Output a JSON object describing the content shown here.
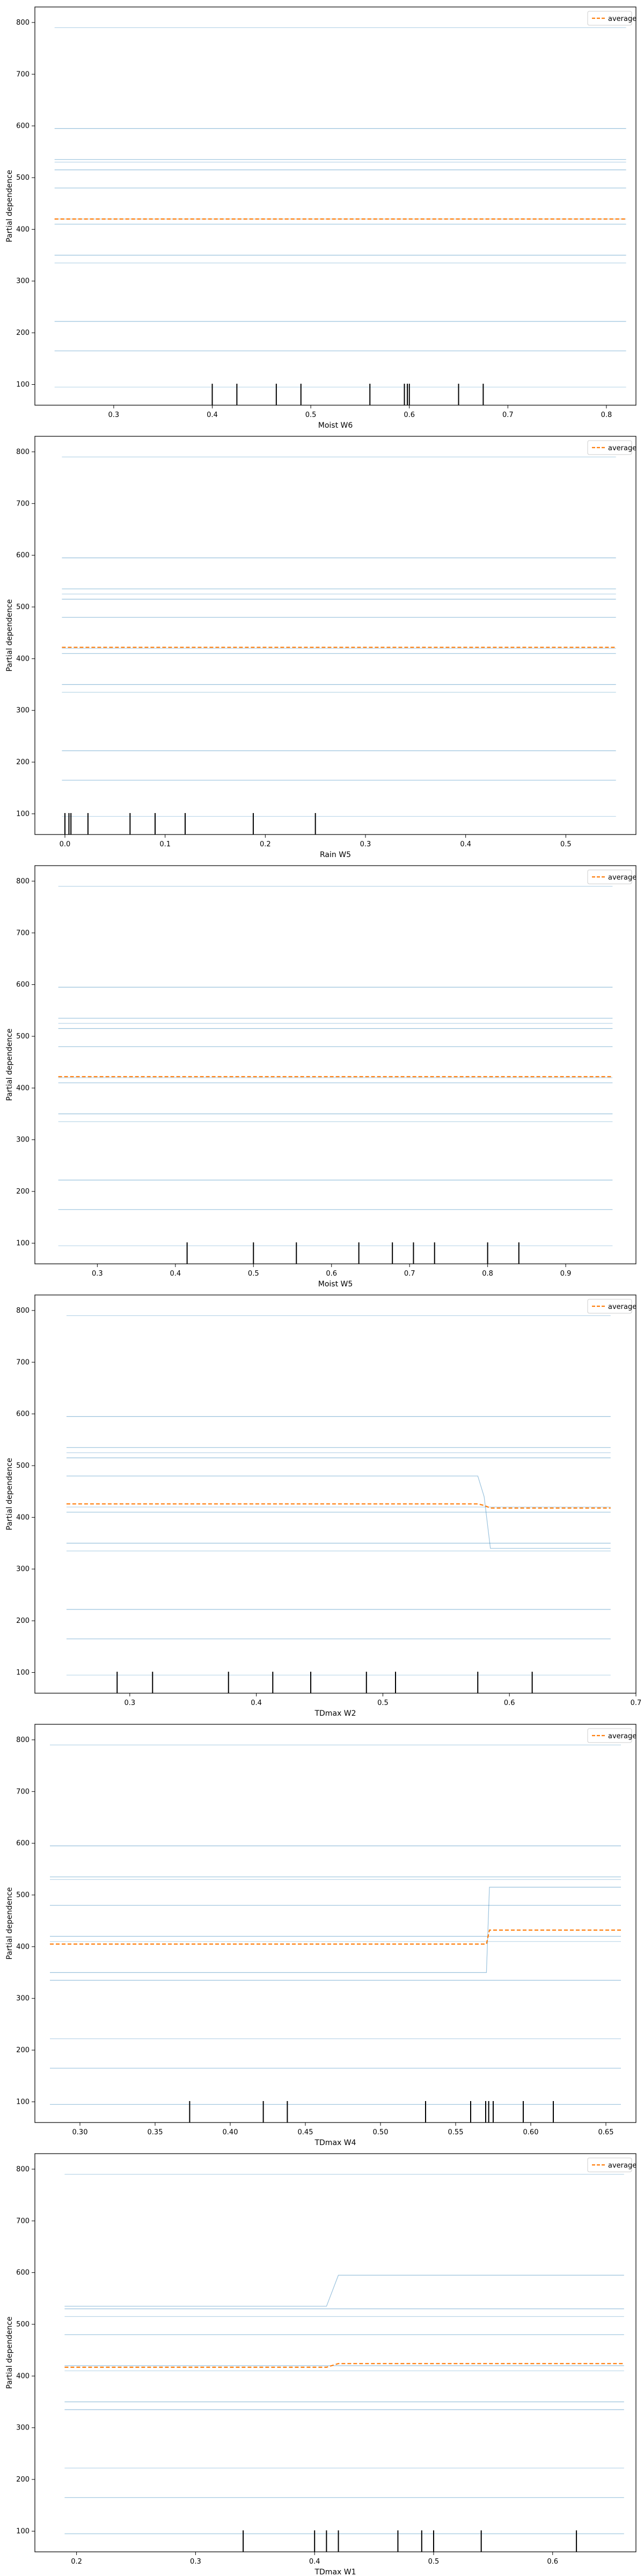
{
  "colors": {
    "ice": "#1f77b4",
    "average": "#ff7f0e",
    "rug": "#000000"
  },
  "chart_data": [
    {
      "type": "line",
      "xlabel": "Moist W6",
      "ylabel": "Partial dependence",
      "xlim": [
        0.22,
        0.83
      ],
      "ylim": [
        60,
        830
      ],
      "xticks": [
        0.3,
        0.4,
        0.5,
        0.6,
        0.7,
        0.8
      ],
      "xtick_labels": [
        "0.3",
        "0.4",
        "0.5",
        "0.6",
        "0.7",
        "0.8"
      ],
      "yticks": [
        100,
        200,
        300,
        400,
        500,
        600,
        700,
        800
      ],
      "ytick_labels": [
        "100",
        "200",
        "300",
        "400",
        "500",
        "600",
        "700",
        "800"
      ],
      "x": [
        0.24,
        0.82
      ],
      "ice": [
        {
          "y": [
            790,
            790
          ]
        },
        {
          "y": [
            595,
            595
          ]
        },
        {
          "y": [
            535,
            535
          ]
        },
        {
          "y": [
            530,
            530
          ]
        },
        {
          "y": [
            515,
            515
          ]
        },
        {
          "y": [
            480,
            480
          ]
        },
        {
          "y": [
            420,
            420
          ]
        },
        {
          "y": [
            410,
            410
          ]
        },
        {
          "y": [
            350,
            350
          ]
        },
        {
          "y": [
            335,
            335
          ]
        },
        {
          "y": [
            222,
            222
          ]
        },
        {
          "y": [
            165,
            165
          ]
        },
        {
          "y": [
            95,
            95
          ]
        }
      ],
      "average": {
        "name": "average",
        "y": [
          420,
          420
        ]
      },
      "rug": [
        0.4,
        0.425,
        0.465,
        0.49,
        0.56,
        0.595,
        0.598,
        0.6,
        0.65,
        0.675
      ],
      "legend": "upper right"
    },
    {
      "type": "line",
      "xlabel": "Rain W5",
      "ylabel": "Partial dependence",
      "xlim": [
        -0.03,
        0.57
      ],
      "ylim": [
        60,
        830
      ],
      "xticks": [
        0.0,
        0.1,
        0.2,
        0.3,
        0.4,
        0.5
      ],
      "xtick_labels": [
        "0.0",
        "0.1",
        "0.2",
        "0.3",
        "0.4",
        "0.5"
      ],
      "yticks": [
        100,
        200,
        300,
        400,
        500,
        600,
        700,
        800
      ],
      "ytick_labels": [
        "100",
        "200",
        "300",
        "400",
        "500",
        "600",
        "700",
        "800"
      ],
      "x": [
        -0.003,
        0.55
      ],
      "ice": [
        {
          "y": [
            790,
            790
          ]
        },
        {
          "y": [
            595,
            595
          ]
        },
        {
          "y": [
            535,
            535
          ]
        },
        {
          "y": [
            525,
            525
          ]
        },
        {
          "y": [
            515,
            515
          ]
        },
        {
          "y": [
            480,
            480
          ]
        },
        {
          "y": [
            420,
            420
          ]
        },
        {
          "y": [
            410,
            410
          ]
        },
        {
          "y": [
            350,
            350
          ]
        },
        {
          "y": [
            335,
            335
          ]
        },
        {
          "y": [
            222,
            222
          ]
        },
        {
          "y": [
            165,
            165
          ]
        },
        {
          "y": [
            95,
            95
          ]
        }
      ],
      "average": {
        "name": "average",
        "y": [
          422,
          422
        ]
      },
      "rug": [
        0.0,
        0.004,
        0.006,
        0.023,
        0.065,
        0.09,
        0.12,
        0.188,
        0.25
      ],
      "legend": "upper right"
    },
    {
      "type": "line",
      "xlabel": "Moist W5",
      "ylabel": "Partial dependence",
      "xlim": [
        0.22,
        0.99
      ],
      "ylim": [
        60,
        830
      ],
      "xticks": [
        0.3,
        0.4,
        0.5,
        0.6,
        0.7,
        0.8,
        0.9
      ],
      "xtick_labels": [
        "0.3",
        "0.4",
        "0.5",
        "0.6",
        "0.7",
        "0.8",
        "0.9"
      ],
      "yticks": [
        100,
        200,
        300,
        400,
        500,
        600,
        700,
        800
      ],
      "ytick_labels": [
        "100",
        "200",
        "300",
        "400",
        "500",
        "600",
        "700",
        "800"
      ],
      "x": [
        0.25,
        0.96
      ],
      "ice": [
        {
          "y": [
            790,
            790
          ]
        },
        {
          "y": [
            595,
            595
          ]
        },
        {
          "y": [
            535,
            535
          ]
        },
        {
          "y": [
            525,
            525
          ]
        },
        {
          "y": [
            515,
            515
          ]
        },
        {
          "y": [
            480,
            480
          ]
        },
        {
          "y": [
            420,
            420
          ]
        },
        {
          "y": [
            410,
            410
          ]
        },
        {
          "y": [
            350,
            350
          ]
        },
        {
          "y": [
            335,
            335
          ]
        },
        {
          "y": [
            222,
            222
          ]
        },
        {
          "y": [
            165,
            165
          ]
        },
        {
          "y": [
            95,
            95
          ]
        }
      ],
      "average": {
        "name": "average",
        "y": [
          422,
          422
        ]
      },
      "rug": [
        0.415,
        0.5,
        0.555,
        0.635,
        0.678,
        0.705,
        0.732,
        0.8,
        0.84
      ],
      "legend": "upper right"
    },
    {
      "type": "line",
      "xlabel": "TDmax W2",
      "ylabel": "Partial dependence",
      "xlim": [
        0.225,
        0.7
      ],
      "ylim": [
        60,
        830
      ],
      "xticks": [
        0.3,
        0.4,
        0.5,
        0.6,
        0.7
      ],
      "xtick_labels": [
        "0.3",
        "0.4",
        "0.5",
        "0.6",
        "0.7"
      ],
      "yticks": [
        100,
        200,
        300,
        400,
        500,
        600,
        700,
        800
      ],
      "ytick_labels": [
        "100",
        "200",
        "300",
        "400",
        "500",
        "600",
        "700",
        "800"
      ],
      "x": [
        0.25,
        0.575,
        0.58,
        0.585,
        0.68
      ],
      "ice": [
        {
          "y": [
            790,
            790,
            790,
            790,
            790
          ]
        },
        {
          "y": [
            595,
            595,
            595,
            595,
            595
          ]
        },
        {
          "y": [
            535,
            535,
            535,
            535,
            535
          ]
        },
        {
          "y": [
            525,
            525,
            525,
            525,
            525
          ]
        },
        {
          "y": [
            515,
            515,
            515,
            515,
            515
          ]
        },
        {
          "y": [
            480,
            480,
            440,
            340,
            340
          ]
        },
        {
          "y": [
            420,
            420,
            420,
            420,
            420
          ]
        },
        {
          "y": [
            410,
            410,
            410,
            410,
            410
          ]
        },
        {
          "y": [
            350,
            350,
            350,
            350,
            350
          ]
        },
        {
          "y": [
            335,
            335,
            335,
            335,
            335
          ]
        },
        {
          "y": [
            222,
            222,
            222,
            222,
            222
          ]
        },
        {
          "y": [
            165,
            165,
            165,
            165,
            165
          ]
        },
        {
          "y": [
            95,
            95,
            95,
            95,
            95
          ]
        }
      ],
      "average": {
        "name": "average",
        "y": [
          426,
          426,
          423,
          418,
          418
        ]
      },
      "rug": [
        0.29,
        0.318,
        0.378,
        0.413,
        0.443,
        0.487,
        0.51,
        0.575,
        0.618
      ],
      "legend": "upper right"
    },
    {
      "type": "line",
      "xlabel": "TDmax W4",
      "ylabel": "Partial dependence",
      "xlim": [
        0.27,
        0.67
      ],
      "ylim": [
        60,
        830
      ],
      "xticks": [
        0.3,
        0.35,
        0.4,
        0.45,
        0.5,
        0.55,
        0.6,
        0.65
      ],
      "xtick_labels": [
        "0.30",
        "0.35",
        "0.40",
        "0.45",
        "0.50",
        "0.55",
        "0.60",
        "0.65"
      ],
      "yticks": [
        100,
        200,
        300,
        400,
        500,
        600,
        700,
        800
      ],
      "ytick_labels": [
        "100",
        "200",
        "300",
        "400",
        "500",
        "600",
        "700",
        "800"
      ],
      "x": [
        0.28,
        0.5705,
        0.5725,
        0.66
      ],
      "ice": [
        {
          "y": [
            790,
            790,
            790,
            790
          ]
        },
        {
          "y": [
            595,
            595,
            595,
            595
          ]
        },
        {
          "y": [
            535,
            535,
            535,
            535
          ]
        },
        {
          "y": [
            530,
            530,
            530,
            530
          ]
        },
        {
          "y": [
            480,
            480,
            480,
            480
          ]
        },
        {
          "y": [
            420,
            420,
            420,
            420
          ]
        },
        {
          "y": [
            410,
            410,
            410,
            410
          ]
        },
        {
          "y": [
            350,
            350,
            515,
            515
          ]
        },
        {
          "y": [
            335,
            335,
            335,
            335
          ]
        },
        {
          "y": [
            222,
            222,
            222,
            222
          ]
        },
        {
          "y": [
            165,
            165,
            165,
            165
          ]
        },
        {
          "y": [
            95,
            95,
            95,
            95
          ]
        }
      ],
      "average": {
        "name": "average",
        "y": [
          405,
          405,
          432,
          432
        ]
      },
      "rug": [
        0.373,
        0.422,
        0.438,
        0.53,
        0.56,
        0.57,
        0.572,
        0.575,
        0.595,
        0.615
      ],
      "legend": "upper right"
    },
    {
      "type": "line",
      "xlabel": "TDmax W1",
      "ylabel": "Partial dependence",
      "xlim": [
        0.165,
        0.67
      ],
      "ylim": [
        60,
        830
      ],
      "xticks": [
        0.2,
        0.3,
        0.4,
        0.5,
        0.6
      ],
      "xtick_labels": [
        "0.2",
        "0.3",
        "0.4",
        "0.5",
        "0.6"
      ],
      "yticks": [
        100,
        200,
        300,
        400,
        500,
        600,
        700,
        800
      ],
      "ytick_labels": [
        "100",
        "200",
        "300",
        "400",
        "500",
        "600",
        "700",
        "800"
      ],
      "x": [
        0.19,
        0.41,
        0.42,
        0.66
      ],
      "ice": [
        {
          "y": [
            790,
            790,
            790,
            790
          ]
        },
        {
          "y": [
            535,
            535,
            595,
            595
          ]
        },
        {
          "y": [
            530,
            530,
            530,
            530
          ]
        },
        {
          "y": [
            515,
            515,
            515,
            515
          ]
        },
        {
          "y": [
            480,
            480,
            480,
            480
          ]
        },
        {
          "y": [
            420,
            420,
            420,
            420
          ]
        },
        {
          "y": [
            410,
            410,
            410,
            410
          ]
        },
        {
          "y": [
            350,
            350,
            350,
            350
          ]
        },
        {
          "y": [
            335,
            335,
            335,
            335
          ]
        },
        {
          "y": [
            222,
            222,
            222,
            222
          ]
        },
        {
          "y": [
            165,
            165,
            165,
            165
          ]
        },
        {
          "y": [
            95,
            95,
            95,
            95
          ]
        }
      ],
      "average": {
        "name": "average",
        "y": [
          417,
          417,
          424,
          424
        ]
      },
      "rug": [
        0.34,
        0.4,
        0.41,
        0.42,
        0.47,
        0.49,
        0.5,
        0.54,
        0.62
      ],
      "legend": "upper right"
    }
  ]
}
